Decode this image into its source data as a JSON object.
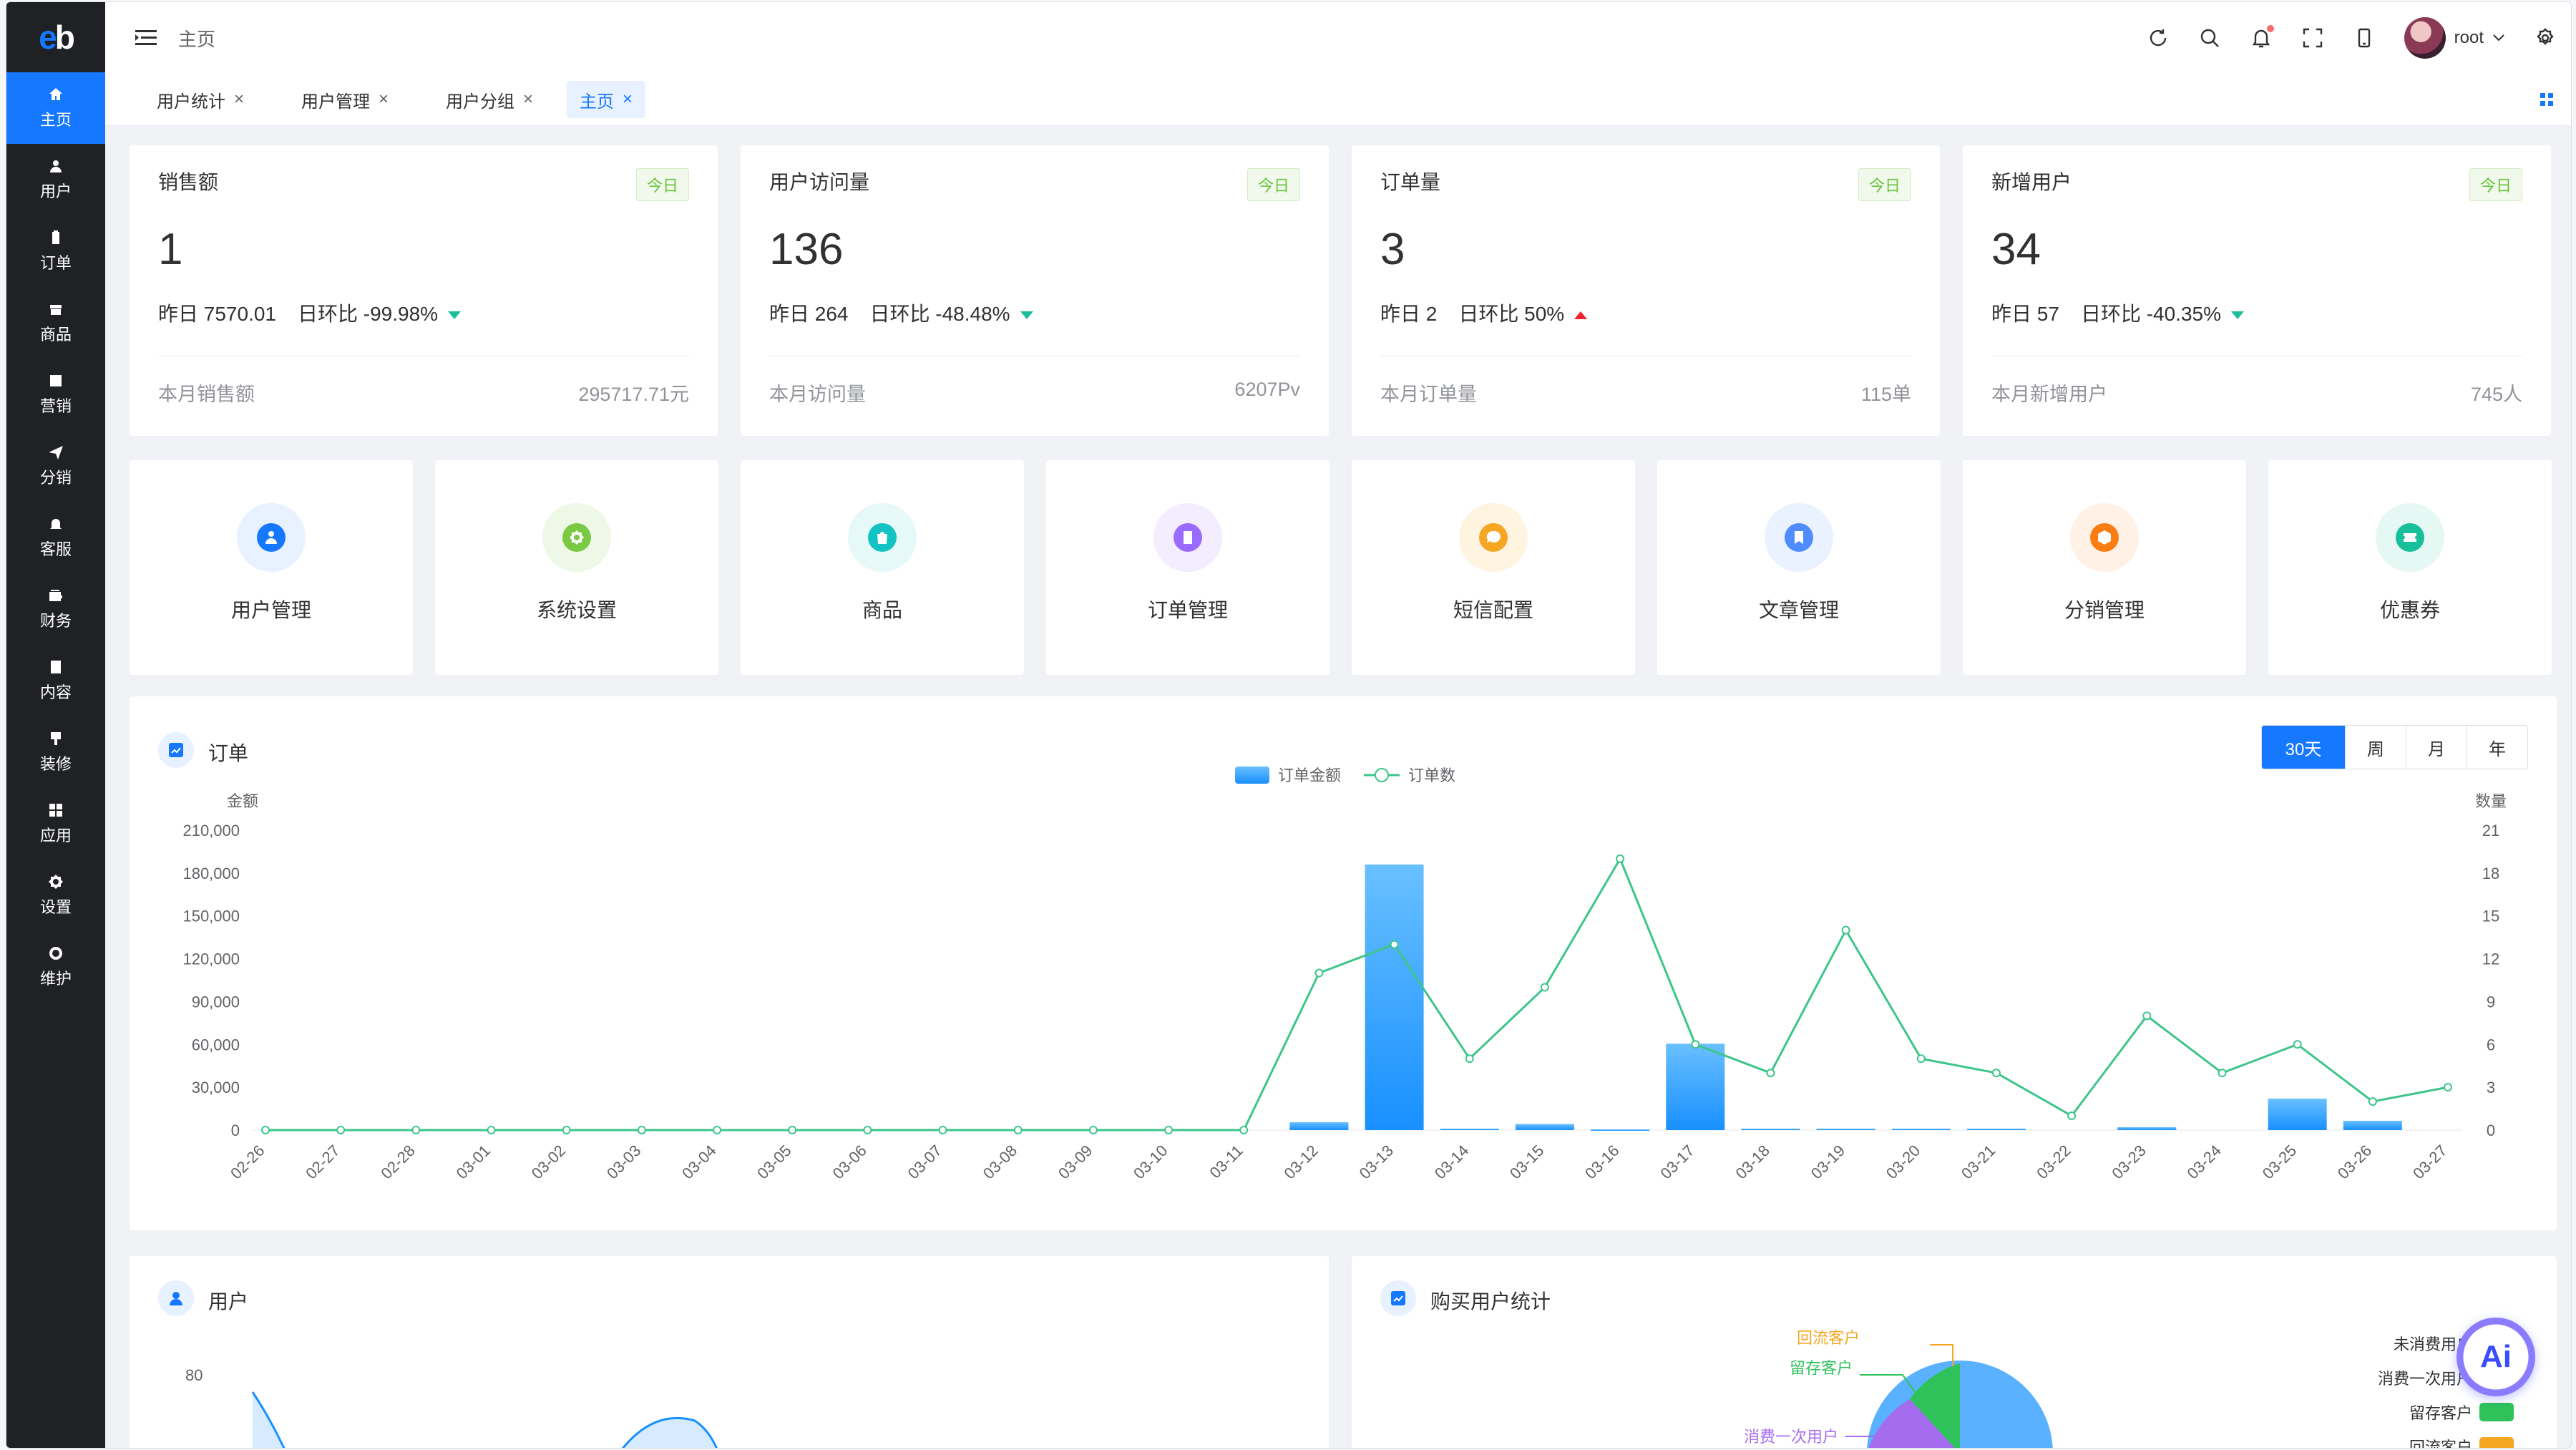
{
  "sidebar": {
    "logo": "eb",
    "items": [
      {
        "label": "主页",
        "icon": "home-icon",
        "active": true
      },
      {
        "label": "用户",
        "icon": "user-icon"
      },
      {
        "label": "订单",
        "icon": "clipboard-icon"
      },
      {
        "label": "商品",
        "icon": "box-icon"
      },
      {
        "label": "营销",
        "icon": "chart-icon"
      },
      {
        "label": "分销",
        "icon": "send-icon"
      },
      {
        "label": "客服",
        "icon": "bell-icon"
      },
      {
        "label": "财务",
        "icon": "wallet-icon"
      },
      {
        "label": "内容",
        "icon": "document-icon"
      },
      {
        "label": "装修",
        "icon": "brush-icon"
      },
      {
        "label": "应用",
        "icon": "grid-icon"
      },
      {
        "label": "设置",
        "icon": "gear-icon"
      },
      {
        "label": "维护",
        "icon": "wrench-icon"
      }
    ]
  },
  "header": {
    "breadcrumb": "主页",
    "user_name": "root"
  },
  "tabs": [
    {
      "label": "用户统计"
    },
    {
      "label": "用户管理"
    },
    {
      "label": "用户分组"
    },
    {
      "label": "主页",
      "active": true
    }
  ],
  "stats": [
    {
      "title": "销售额",
      "badge": "今日",
      "value": "1",
      "yesterday": "昨日 7570.01",
      "ratio": "日环比 -99.98%",
      "trend": "down",
      "foot_label": "本月销售额",
      "foot_value": "295717.71元"
    },
    {
      "title": "用户访问量",
      "badge": "今日",
      "value": "136",
      "yesterday": "昨日 264",
      "ratio": "日环比 -48.48%",
      "trend": "down",
      "foot_label": "本月访问量",
      "foot_value": "6207Pv"
    },
    {
      "title": "订单量",
      "badge": "今日",
      "value": "3",
      "yesterday": "昨日 2",
      "ratio": "日环比 50%",
      "trend": "up",
      "foot_label": "本月订单量",
      "foot_value": "115单"
    },
    {
      "title": "新增用户",
      "badge": "今日",
      "value": "34",
      "yesterday": "昨日 57",
      "ratio": "日环比 -40.35%",
      "trend": "down",
      "foot_label": "本月新增用户",
      "foot_value": "745人"
    }
  ],
  "shortcuts": [
    {
      "label": "用户管理",
      "icon": "user-icon",
      "color": "#1677ff",
      "bg": "#e8f1ff"
    },
    {
      "label": "系统设置",
      "icon": "gear-icon",
      "color": "#7ac943",
      "bg": "#eef8e6"
    },
    {
      "label": "商品",
      "icon": "bag-icon",
      "color": "#13c2c2",
      "bg": "#e6f9f8"
    },
    {
      "label": "订单管理",
      "icon": "list-icon",
      "color": "#9a6bff",
      "bg": "#f3edff"
    },
    {
      "label": "短信配置",
      "icon": "message-icon",
      "color": "#f5a623",
      "bg": "#fff4e0"
    },
    {
      "label": "文章管理",
      "icon": "bookmark-icon",
      "color": "#4f8cff",
      "bg": "#eaf1ff"
    },
    {
      "label": "分销管理",
      "icon": "hexagon-chart-icon",
      "color": "#fa7d14",
      "bg": "#fff1e6"
    },
    {
      "label": "优惠券",
      "icon": "ticket-icon",
      "color": "#19be9b",
      "bg": "#e6f8f3"
    }
  ],
  "order_section": {
    "title": "订单",
    "range_options": [
      "30天",
      "周",
      "月",
      "年"
    ],
    "selected_range": "30天"
  },
  "chart_data": {
    "type": "bar",
    "x": [
      "02-26",
      "02-27",
      "02-28",
      "03-01",
      "03-02",
      "03-03",
      "03-04",
      "03-05",
      "03-06",
      "03-07",
      "03-08",
      "03-09",
      "03-10",
      "03-11",
      "03-12",
      "03-13",
      "03-14",
      "03-15",
      "03-16",
      "03-17",
      "03-18",
      "03-19",
      "03-20",
      "03-21",
      "03-22",
      "03-23",
      "03-24",
      "03-25",
      "03-26",
      "03-27"
    ],
    "series": [
      {
        "name": "订单金额",
        "type": "bar",
        "axis": "left",
        "values": [
          0,
          0,
          0,
          0,
          0,
          0,
          0,
          0,
          0,
          0,
          0,
          0,
          0,
          0,
          5500,
          186000,
          1000,
          4200,
          500,
          60500,
          1000,
          1000,
          1000,
          1000,
          0,
          2000,
          0,
          22000,
          6500,
          0
        ]
      },
      {
        "name": "订单数",
        "type": "line",
        "axis": "right",
        "values": [
          0,
          0,
          0,
          0,
          0,
          0,
          0,
          0,
          0,
          0,
          0,
          0,
          0,
          0,
          11,
          13,
          5,
          10,
          19,
          6,
          4,
          14,
          5,
          4,
          1,
          8,
          4,
          6,
          2,
          3
        ]
      }
    ],
    "ylabel": "金额",
    "y2label": "数量",
    "ylim": [
      0,
      210000
    ],
    "y_ticks": [
      "0",
      "30,000",
      "60,000",
      "90,000",
      "120,000",
      "150,000",
      "180,000",
      "210,000"
    ],
    "y2lim": [
      0,
      21
    ],
    "y2_ticks": [
      "0",
      "3",
      "6",
      "9",
      "12",
      "15",
      "18",
      "21"
    ],
    "legend": "top-center",
    "colors": {
      "bar": "#1890ff",
      "line": "#3ec58a"
    }
  },
  "user_section": {
    "title": "用户",
    "y_tick": "80"
  },
  "buyer_section": {
    "title": "购买用户统计",
    "legend": [
      "未消费用户",
      "消费一次用户",
      "留存客户",
      "回流客户"
    ],
    "labels": [
      "回流客户",
      "留存客户",
      "消费一次用户"
    ]
  },
  "ai_label": "Ai"
}
